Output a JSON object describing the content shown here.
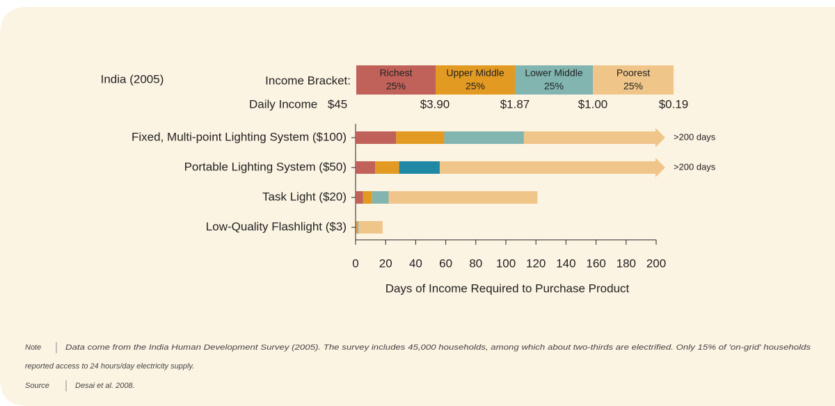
{
  "chart_data": {
    "type": "bar",
    "orientation": "horizontal",
    "stacked": true,
    "country_label": "India (2005)",
    "bracket_label": "Income Bracket:",
    "income_label": "Daily Income",
    "income_values": [
      "$45",
      "$3.90",
      "$1.87",
      "$1.00",
      "$0.19"
    ],
    "categories": [
      "Fixed, Multi-point Lighting System ($100)",
      "Portable Lighting System ($50)",
      "Task Light ($20)",
      "Low-Quality Flashlight ($3)"
    ],
    "series": [
      {
        "name": "Richest",
        "share": "25%",
        "color": "#c0625a",
        "values": [
          27,
          13,
          5,
          0.5
        ]
      },
      {
        "name": "Upper Middle",
        "share": "25%",
        "color": "#e39a22",
        "values": [
          32,
          16,
          6,
          0.5
        ]
      },
      {
        "name": "Lower Middle",
        "share": "25%",
        "color": "#82b5b0",
        "colors": [
          "#82b5b0",
          "#1f88a5",
          "#82b5b0",
          "#82b5b0"
        ],
        "values": [
          53,
          27,
          11,
          1
        ]
      },
      {
        "name": "Poorest",
        "share": "25%",
        "color": "#f0c58a",
        "values": [
          94,
          150,
          99,
          16
        ]
      }
    ],
    "overflow_labels": [
      ">200 days",
      ">200 days"
    ],
    "xlim": [
      0,
      200
    ],
    "xticks": [
      0,
      20,
      40,
      60,
      80,
      100,
      120,
      140,
      160,
      180,
      200
    ],
    "xlabel": "Days of Income Required to Purchase Product",
    "note_label": "Note",
    "note": [
      "Data come from the India Human Development Survey (2005). The survey includes 45,000 households, among which about two-thirds are electrified. Only 15% of 'on-grid' households",
      "reported access to 24 hours/day electricity supply."
    ],
    "source_label": "Source",
    "source": "Desai et al. 2008."
  }
}
